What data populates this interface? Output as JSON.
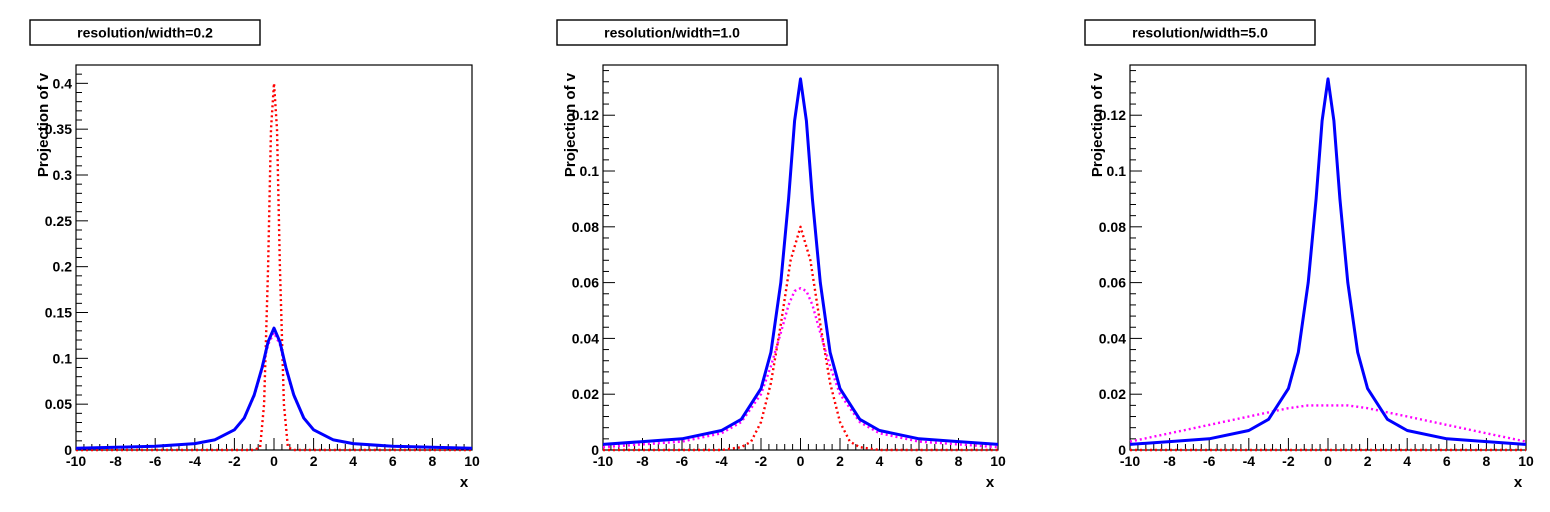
{
  "chart_data": [
    {
      "type": "line",
      "title": "resolution/width=0.2",
      "xlabel": "x",
      "ylabel": "Projection of v",
      "xlim": [
        -10,
        10
      ],
      "ylim": [
        0,
        0.42
      ],
      "xticks": [
        "-10",
        "-8",
        "-6",
        "-4",
        "-2",
        "0",
        "2",
        "4",
        "6",
        "8",
        "10"
      ],
      "yticks": [
        {
          "value": 0,
          "label": "0"
        },
        {
          "value": 0.05,
          "label": "0.05"
        },
        {
          "value": 0.1,
          "label": "0.1"
        },
        {
          "value": 0.15,
          "label": "0.15"
        },
        {
          "value": 0.2,
          "label": "0.2"
        },
        {
          "value": 0.25,
          "label": "0.25"
        },
        {
          "value": 0.3,
          "label": "0.3"
        },
        {
          "value": 0.35,
          "label": "0.35"
        },
        {
          "value": 0.4,
          "label": "0.4"
        }
      ],
      "series": [
        {
          "color": "#0000ff",
          "style": "solid",
          "x": [
            -10,
            -8,
            -6,
            -4,
            -3,
            -2,
            -1.5,
            -1,
            -0.6,
            -0.3,
            0,
            0.3,
            0.6,
            1,
            1.5,
            2,
            3,
            4,
            6,
            8,
            10
          ],
          "y": [
            0.002,
            0.003,
            0.004,
            0.007,
            0.011,
            0.022,
            0.035,
            0.06,
            0.09,
            0.118,
            0.133,
            0.118,
            0.09,
            0.06,
            0.035,
            0.022,
            0.011,
            0.007,
            0.004,
            0.003,
            0.002
          ]
        },
        {
          "color": "#ff0000",
          "style": "dotted",
          "x": [
            -10,
            -2,
            -1,
            -0.7,
            -0.5,
            -0.3,
            -0.15,
            0,
            0.15,
            0.3,
            0.5,
            0.7,
            1,
            2,
            10
          ],
          "y": [
            0,
            0,
            0,
            0.003,
            0.05,
            0.2,
            0.35,
            0.4,
            0.35,
            0.2,
            0.05,
            0.003,
            0,
            0,
            0
          ]
        },
        {
          "color": "#ff00ff",
          "style": "dotted",
          "x": [
            -10,
            -8,
            -6,
            -4,
            -3,
            -2,
            -1.5,
            -1,
            -0.6,
            -0.3,
            0,
            0.3,
            0.6,
            1,
            1.5,
            2,
            3,
            4,
            6,
            8,
            10
          ],
          "y": [
            0.002,
            0.003,
            0.004,
            0.007,
            0.011,
            0.022,
            0.035,
            0.059,
            0.088,
            0.115,
            0.128,
            0.115,
            0.088,
            0.059,
            0.035,
            0.022,
            0.011,
            0.007,
            0.004,
            0.003,
            0.002
          ]
        }
      ]
    },
    {
      "type": "line",
      "title": "resolution/width=1.0",
      "xlabel": "x",
      "ylabel": "Projection of v",
      "xlim": [
        -10,
        10
      ],
      "ylim": [
        0,
        0.138
      ],
      "xticks": [
        "-10",
        "-8",
        "-6",
        "-4",
        "-2",
        "0",
        "2",
        "4",
        "6",
        "8",
        "10"
      ],
      "yticks": [
        {
          "value": 0,
          "label": "0"
        },
        {
          "value": 0.02,
          "label": "0.02"
        },
        {
          "value": 0.04,
          "label": "0.04"
        },
        {
          "value": 0.06,
          "label": "0.06"
        },
        {
          "value": 0.08,
          "label": "0.08"
        },
        {
          "value": 0.1,
          "label": "0.1"
        },
        {
          "value": 0.12,
          "label": "0.12"
        }
      ],
      "series": [
        {
          "color": "#0000ff",
          "style": "solid",
          "x": [
            -10,
            -8,
            -6,
            -4,
            -3,
            -2,
            -1.5,
            -1,
            -0.6,
            -0.3,
            0,
            0.3,
            0.6,
            1,
            1.5,
            2,
            3,
            4,
            6,
            8,
            10
          ],
          "y": [
            0.002,
            0.003,
            0.004,
            0.007,
            0.011,
            0.022,
            0.035,
            0.06,
            0.09,
            0.118,
            0.133,
            0.118,
            0.09,
            0.06,
            0.035,
            0.022,
            0.011,
            0.007,
            0.004,
            0.003,
            0.002
          ]
        },
        {
          "color": "#ff0000",
          "style": "dotted",
          "x": [
            -10,
            -4,
            -3,
            -2.5,
            -2,
            -1.5,
            -1,
            -0.5,
            0,
            0.5,
            1,
            1.5,
            2,
            2.5,
            3,
            4,
            10
          ],
          "y": [
            0,
            0,
            0.001,
            0.003,
            0.01,
            0.024,
            0.045,
            0.068,
            0.08,
            0.068,
            0.045,
            0.024,
            0.01,
            0.003,
            0.001,
            0,
            0
          ]
        },
        {
          "color": "#ff00ff",
          "style": "dotted",
          "x": [
            -10,
            -8,
            -6,
            -4,
            -3,
            -2,
            -1.5,
            -1,
            -0.6,
            -0.3,
            0,
            0.3,
            0.6,
            1,
            1.5,
            2,
            3,
            4,
            6,
            8,
            10
          ],
          "y": [
            0.001,
            0.002,
            0.003,
            0.006,
            0.01,
            0.02,
            0.03,
            0.042,
            0.052,
            0.057,
            0.058,
            0.057,
            0.052,
            0.042,
            0.03,
            0.02,
            0.01,
            0.006,
            0.003,
            0.002,
            0.001
          ]
        }
      ]
    },
    {
      "type": "line",
      "title": "resolution/width=5.0",
      "xlabel": "x",
      "ylabel": "Projection of v",
      "xlim": [
        -10,
        10
      ],
      "ylim": [
        0,
        0.138
      ],
      "xticks": [
        "-10",
        "-8",
        "-6",
        "-4",
        "-2",
        "0",
        "2",
        "4",
        "6",
        "8",
        "10"
      ],
      "yticks": [
        {
          "value": 0,
          "label": "0"
        },
        {
          "value": 0.02,
          "label": "0.02"
        },
        {
          "value": 0.04,
          "label": "0.04"
        },
        {
          "value": 0.06,
          "label": "0.06"
        },
        {
          "value": 0.08,
          "label": "0.08"
        },
        {
          "value": 0.1,
          "label": "0.1"
        },
        {
          "value": 0.12,
          "label": "0.12"
        }
      ],
      "series": [
        {
          "color": "#0000ff",
          "style": "solid",
          "x": [
            -10,
            -8,
            -6,
            -4,
            -3,
            -2,
            -1.5,
            -1,
            -0.6,
            -0.3,
            0,
            0.3,
            0.6,
            1,
            1.5,
            2,
            3,
            4,
            6,
            8,
            10
          ],
          "y": [
            0.002,
            0.003,
            0.004,
            0.007,
            0.011,
            0.022,
            0.035,
            0.06,
            0.09,
            0.118,
            0.133,
            0.118,
            0.09,
            0.06,
            0.035,
            0.022,
            0.011,
            0.007,
            0.004,
            0.003,
            0.002
          ]
        },
        {
          "color": "#ff0000",
          "style": "dotted",
          "x": [
            -10,
            10
          ],
          "y": [
            0,
            0
          ]
        },
        {
          "color": "#ff00ff",
          "style": "dotted",
          "x": [
            -10,
            -8,
            -6,
            -4,
            -2,
            -1,
            0,
            1,
            2,
            4,
            6,
            8,
            10
          ],
          "y": [
            0.003,
            0.006,
            0.009,
            0.012,
            0.015,
            0.016,
            0.016,
            0.016,
            0.015,
            0.012,
            0.009,
            0.006,
            0.003
          ]
        }
      ]
    }
  ]
}
